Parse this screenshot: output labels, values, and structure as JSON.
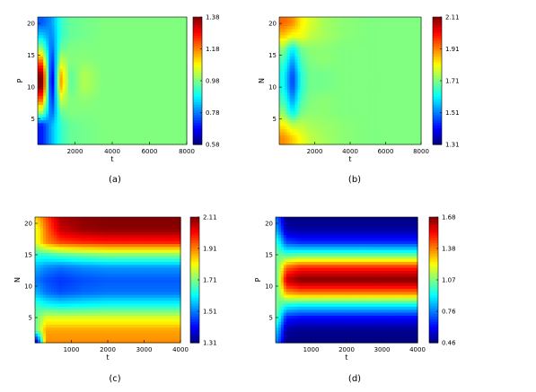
{
  "panels": [
    {
      "caption": "(a)"
    },
    {
      "caption": "(b)"
    },
    {
      "caption": "(c)"
    },
    {
      "caption": "(d)"
    }
  ],
  "chart_data": [
    {
      "type": "heatmap",
      "title": "",
      "xlabel": "t",
      "ylabel": "P",
      "xlim": [
        0,
        8000
      ],
      "ylim": [
        1,
        21
      ],
      "xticks": [
        2000,
        4000,
        6000,
        8000
      ],
      "xtick_labels": [
        "2000",
        "4000",
        "6000",
        "8000"
      ],
      "yticks": [
        5,
        10,
        15,
        20
      ],
      "ytick_labels": [
        "5",
        "10",
        "15",
        "20"
      ],
      "colorbar": {
        "range": [
          0.58,
          1.38
        ],
        "ticks": [
          "0.58",
          "0.78",
          "0.98",
          "1.18",
          "1.38"
        ]
      },
      "value_grid": {
        "x": [
          250,
          750,
          1250,
          1750,
          2500,
          3500,
          5000,
          7000
        ],
        "y": [
          2,
          4,
          6,
          8,
          10,
          11,
          12,
          14,
          16,
          18,
          20
        ],
        "z": [
          [
            0.7,
            0.82,
            0.92,
            0.96,
            0.97,
            0.98,
            0.98,
            0.98
          ],
          [
            0.7,
            0.82,
            0.92,
            0.96,
            0.97,
            0.98,
            0.98,
            0.98
          ],
          [
            1.0,
            0.74,
            0.96,
            0.98,
            0.98,
            0.98,
            0.98,
            0.98
          ],
          [
            1.2,
            0.68,
            1.04,
            0.98,
            0.99,
            0.98,
            0.98,
            0.98
          ],
          [
            1.36,
            0.62,
            1.14,
            0.95,
            1.02,
            0.98,
            0.98,
            0.98
          ],
          [
            1.38,
            0.6,
            1.16,
            0.95,
            1.02,
            0.98,
            0.98,
            0.98
          ],
          [
            1.36,
            0.62,
            1.14,
            0.95,
            1.02,
            0.98,
            0.98,
            0.98
          ],
          [
            1.2,
            0.68,
            1.04,
            0.98,
            0.99,
            0.98,
            0.98,
            0.98
          ],
          [
            1.0,
            0.74,
            0.96,
            0.98,
            0.98,
            0.98,
            0.98,
            0.98
          ],
          [
            0.85,
            0.78,
            0.92,
            0.96,
            0.97,
            0.98,
            0.98,
            0.98
          ],
          [
            0.75,
            0.8,
            0.92,
            0.96,
            0.97,
            0.98,
            0.98,
            0.98
          ]
        ]
      }
    },
    {
      "type": "heatmap",
      "title": "",
      "xlabel": "t",
      "ylabel": "N",
      "xlim": [
        0,
        8000
      ],
      "ylim": [
        1,
        21
      ],
      "xticks": [
        2000,
        4000,
        6000,
        8000
      ],
      "xtick_labels": [
        "2000",
        "4000",
        "6000",
        "8000"
      ],
      "yticks": [
        5,
        10,
        15,
        20
      ],
      "ytick_labels": [
        "5",
        "10",
        "15",
        "20"
      ],
      "colorbar": {
        "range": [
          1.31,
          2.11
        ],
        "ticks": [
          "1.31",
          "1.51",
          "1.71",
          "1.91",
          "2.11"
        ]
      },
      "value_grid": {
        "x": [
          250,
          750,
          1250,
          1750,
          2500,
          3500,
          5000,
          7000
        ],
        "y": [
          2,
          4,
          6,
          8,
          10,
          11,
          12,
          14,
          16,
          18,
          20
        ],
        "z": [
          [
            1.9,
            1.85,
            1.8,
            1.76,
            1.74,
            1.72,
            1.71,
            1.71
          ],
          [
            1.82,
            1.76,
            1.76,
            1.74,
            1.73,
            1.72,
            1.71,
            1.71
          ],
          [
            1.72,
            1.6,
            1.7,
            1.72,
            1.72,
            1.71,
            1.71,
            1.71
          ],
          [
            1.66,
            1.52,
            1.67,
            1.71,
            1.72,
            1.71,
            1.71,
            1.71
          ],
          [
            1.62,
            1.46,
            1.64,
            1.7,
            1.7,
            1.71,
            1.71,
            1.71
          ],
          [
            1.62,
            1.45,
            1.64,
            1.7,
            1.7,
            1.71,
            1.71,
            1.71
          ],
          [
            1.62,
            1.46,
            1.64,
            1.7,
            1.7,
            1.71,
            1.71,
            1.71
          ],
          [
            1.66,
            1.52,
            1.67,
            1.71,
            1.72,
            1.71,
            1.71,
            1.71
          ],
          [
            1.72,
            1.6,
            1.7,
            1.72,
            1.72,
            1.71,
            1.71,
            1.71
          ],
          [
            1.85,
            1.8,
            1.8,
            1.76,
            1.74,
            1.72,
            1.71,
            1.71
          ],
          [
            1.93,
            1.9,
            1.82,
            1.78,
            1.74,
            1.72,
            1.71,
            1.71
          ]
        ]
      }
    },
    {
      "type": "heatmap",
      "title": "",
      "xlabel": "t",
      "ylabel": "N",
      "xlim": [
        0,
        4000
      ],
      "ylim": [
        1,
        21
      ],
      "xticks": [
        1000,
        2000,
        3000,
        4000
      ],
      "xtick_labels": [
        "1000",
        "2000",
        "3000",
        "4000"
      ],
      "yticks": [
        5,
        10,
        15,
        20
      ],
      "ytick_labels": [
        "5",
        "10",
        "15",
        "20"
      ],
      "colorbar": {
        "range": [
          1.31,
          2.11
        ],
        "ticks": [
          "1.31",
          "1.51",
          "1.71",
          "1.91",
          "2.11"
        ]
      },
      "value_grid": {
        "x": [
          60,
          300,
          700,
          1300,
          2000,
          2700,
          3400,
          3900
        ],
        "y": [
          1,
          3,
          5,
          7,
          9,
          11,
          13,
          15,
          17,
          19,
          21
        ],
        "z": [
          [
            1.35,
            1.9,
            1.9,
            1.9,
            1.9,
            1.9,
            1.9,
            1.9
          ],
          [
            1.7,
            1.88,
            1.88,
            1.88,
            1.88,
            1.88,
            1.88,
            1.88
          ],
          [
            1.7,
            1.78,
            1.78,
            1.78,
            1.78,
            1.78,
            1.78,
            1.78
          ],
          [
            1.65,
            1.62,
            1.6,
            1.61,
            1.62,
            1.62,
            1.62,
            1.62
          ],
          [
            1.55,
            1.5,
            1.47,
            1.49,
            1.5,
            1.5,
            1.5,
            1.5
          ],
          [
            1.5,
            1.47,
            1.45,
            1.47,
            1.48,
            1.48,
            1.48,
            1.48
          ],
          [
            1.55,
            1.52,
            1.5,
            1.52,
            1.53,
            1.53,
            1.53,
            1.53
          ],
          [
            1.65,
            1.65,
            1.68,
            1.7,
            1.72,
            1.72,
            1.72,
            1.72
          ],
          [
            1.8,
            1.9,
            1.96,
            1.98,
            1.99,
            1.99,
            1.99,
            1.99
          ],
          [
            1.8,
            1.92,
            2.05,
            2.09,
            2.1,
            2.1,
            2.1,
            2.1
          ],
          [
            1.85,
            1.95,
            2.08,
            2.1,
            2.11,
            2.11,
            2.11,
            2.11
          ]
        ]
      }
    },
    {
      "type": "heatmap",
      "title": "",
      "xlabel": "t",
      "ylabel": "P",
      "xlim": [
        0,
        4000
      ],
      "ylim": [
        1,
        21
      ],
      "xticks": [
        1000,
        2000,
        3000,
        4000
      ],
      "xtick_labels": [
        "1000",
        "2000",
        "3000",
        "4000"
      ],
      "yticks": [
        5,
        10,
        15,
        20
      ],
      "ytick_labels": [
        "5",
        "10",
        "15",
        "20"
      ],
      "colorbar": {
        "range": [
          0.46,
          1.68
        ],
        "ticks": [
          "0.46",
          "0.76",
          "1.07",
          "1.38",
          "1.68"
        ]
      },
      "value_grid": {
        "x": [
          60,
          300,
          700,
          1300,
          2000,
          2700,
          3400,
          3900
        ],
        "y": [
          1,
          3,
          5,
          7,
          9,
          11,
          13,
          15,
          17,
          19,
          21
        ],
        "z": [
          [
            0.75,
            0.46,
            0.46,
            0.46,
            0.46,
            0.46,
            0.46,
            0.46
          ],
          [
            0.85,
            0.5,
            0.48,
            0.48,
            0.48,
            0.48,
            0.48,
            0.48
          ],
          [
            1.0,
            0.65,
            0.62,
            0.62,
            0.62,
            0.62,
            0.62,
            0.62
          ],
          [
            1.05,
            0.95,
            0.92,
            0.92,
            0.92,
            0.92,
            0.92,
            0.92
          ],
          [
            1.05,
            1.35,
            1.4,
            1.4,
            1.4,
            1.4,
            1.4,
            1.4
          ],
          [
            1.05,
            1.6,
            1.68,
            1.68,
            1.68,
            1.68,
            1.68,
            1.68
          ],
          [
            1.05,
            1.4,
            1.48,
            1.48,
            1.48,
            1.48,
            1.48,
            1.48
          ],
          [
            1.05,
            1.0,
            1.02,
            1.02,
            1.02,
            1.02,
            1.02,
            1.02
          ],
          [
            0.95,
            0.7,
            0.66,
            0.66,
            0.66,
            0.66,
            0.66,
            0.66
          ],
          [
            0.8,
            0.52,
            0.5,
            0.5,
            0.5,
            0.5,
            0.5,
            0.5
          ],
          [
            0.72,
            0.46,
            0.46,
            0.46,
            0.46,
            0.46,
            0.46,
            0.46
          ]
        ]
      }
    }
  ]
}
